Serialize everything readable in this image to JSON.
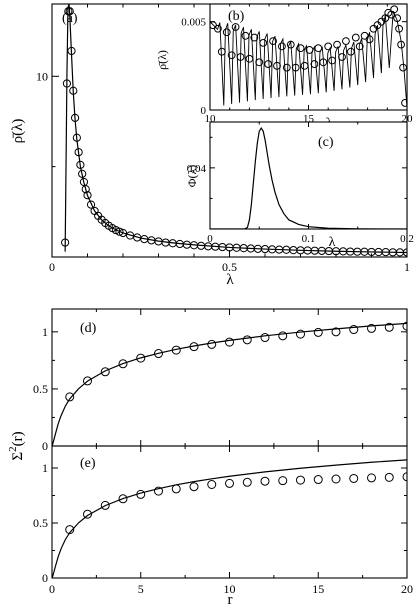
{
  "chart_data": [
    {
      "id": "a",
      "type": "scatter",
      "panel_label": "(a)",
      "xlabel": "λ",
      "ylabel": "ρ̄(λ)",
      "xlim": [
        0,
        1
      ],
      "ylim": [
        0,
        14
      ],
      "x_ticks": [
        0,
        0.5,
        1
      ],
      "x_tick_labels": [
        "0",
        "0.5",
        "1"
      ],
      "y_ticks": [
        10
      ],
      "y_tick_labels": [
        "10"
      ],
      "series": [
        {
          "style": "line",
          "x": [
            0.037,
            0.04,
            0.042,
            0.045,
            0.048,
            0.05,
            0.055,
            0.06,
            0.065,
            0.07,
            0.08,
            0.09,
            0.1,
            0.12,
            0.14,
            0.16,
            0.18,
            0.2,
            0.25,
            0.3,
            0.35,
            0.4,
            0.5,
            0.6,
            0.7,
            0.8,
            0.9,
            1.0
          ],
          "y": [
            0.3,
            6.0,
            10.0,
            13.8,
            14.0,
            13.4,
            11.2,
            9.1,
            7.6,
            6.5,
            5.0,
            4.1,
            3.4,
            2.55,
            2.05,
            1.72,
            1.5,
            1.33,
            1.05,
            0.88,
            0.76,
            0.67,
            0.53,
            0.44,
            0.37,
            0.32,
            0.28,
            0.25
          ]
        },
        {
          "style": "markers",
          "x": [
            0.037,
            0.042,
            0.046,
            0.05,
            0.055,
            0.06,
            0.065,
            0.07,
            0.075,
            0.08,
            0.085,
            0.09,
            0.095,
            0.1,
            0.11,
            0.12,
            0.13,
            0.14,
            0.15,
            0.16,
            0.17,
            0.18,
            0.19,
            0.2,
            0.22,
            0.24,
            0.26,
            0.28,
            0.3,
            0.32,
            0.34,
            0.36,
            0.38,
            0.4,
            0.42,
            0.44,
            0.46,
            0.48,
            0.5,
            0.52,
            0.54,
            0.56,
            0.58,
            0.6,
            0.62,
            0.64,
            0.66,
            0.68,
            0.7,
            0.72,
            0.74,
            0.76,
            0.78,
            0.8,
            0.82,
            0.84,
            0.86,
            0.88,
            0.9,
            0.92,
            0.94,
            0.96,
            0.98,
            1.0
          ],
          "y": [
            0.8,
            9.6,
            13.6,
            13.6,
            11.4,
            9.2,
            7.7,
            6.6,
            5.8,
            5.1,
            4.6,
            4.15,
            3.75,
            3.42,
            2.9,
            2.55,
            2.28,
            2.06,
            1.88,
            1.73,
            1.6,
            1.49,
            1.4,
            1.33,
            1.19,
            1.08,
            0.99,
            0.92,
            0.86,
            0.8,
            0.76,
            0.72,
            0.68,
            0.65,
            0.62,
            0.59,
            0.57,
            0.55,
            0.53,
            0.51,
            0.49,
            0.47,
            0.45,
            0.44,
            0.42,
            0.41,
            0.4,
            0.38,
            0.37,
            0.36,
            0.35,
            0.34,
            0.33,
            0.32,
            0.31,
            0.3,
            0.295,
            0.29,
            0.28,
            0.275,
            0.27,
            0.26,
            0.255,
            0.25
          ]
        }
      ]
    },
    {
      "id": "b",
      "type": "scatter",
      "panel_label": "(b)",
      "xlabel": "λ",
      "ylabel": "ρ̄(λ)",
      "xlim": [
        10,
        20
      ],
      "ylim": [
        0,
        0.006
      ],
      "x_ticks": [
        10,
        15,
        20
      ],
      "x_tick_labels": [
        "10",
        "15",
        "20"
      ],
      "y_ticks": [
        0,
        0.005
      ],
      "y_tick_labels": [
        "0",
        "0.005"
      ],
      "series": [
        {
          "style": "oscillating-line",
          "peaks_x": [
            10.5,
            10.9,
            11.3,
            11.7,
            12.1,
            12.5,
            12.9,
            13.3,
            13.7,
            14.1,
            14.5,
            14.9,
            15.3,
            15.7,
            16.1,
            16.5,
            16.9,
            17.3,
            17.7,
            18.1,
            18.5,
            18.9
          ],
          "troughs_x": [
            10.7,
            11.1,
            11.5,
            11.9,
            12.3,
            12.7,
            13.1,
            13.5,
            13.9,
            14.3,
            14.7,
            15.1,
            15.5,
            15.9,
            16.3,
            16.7,
            17.1,
            17.5,
            17.9,
            18.3,
            18.7,
            19.1
          ],
          "envelope_x": [
            10.0,
            11.0,
            12.0,
            13.0,
            14.0,
            15.0,
            16.0,
            17.0,
            17.8,
            18.5,
            19.0,
            19.3,
            19.6,
            19.8,
            20.0
          ],
          "envelope_y": [
            0.005,
            0.0049,
            0.0046,
            0.0043,
            0.0039,
            0.0036,
            0.0035,
            0.0037,
            0.0041,
            0.0048,
            0.0055,
            0.0056,
            0.0048,
            0.003,
            0.0001
          ]
        },
        {
          "style": "markers",
          "x": [
            10.15,
            10.4,
            10.6,
            10.85,
            11.1,
            11.3,
            11.55,
            11.8,
            12.0,
            12.25,
            12.5,
            12.7,
            12.95,
            13.2,
            13.4,
            13.65,
            13.9,
            14.1,
            14.35,
            14.6,
            14.8,
            15.05,
            15.3,
            15.5,
            15.75,
            16.0,
            16.2,
            16.45,
            16.7,
            16.9,
            17.15,
            17.4,
            17.6,
            17.85,
            18.1,
            18.3,
            18.5,
            18.7,
            18.9,
            19.05,
            19.2,
            19.35,
            19.5,
            19.6,
            19.7,
            19.8,
            19.9
          ],
          "y": [
            0.0048,
            0.0046,
            0.0033,
            0.0044,
            0.0031,
            0.0047,
            0.003,
            0.0042,
            0.0029,
            0.0041,
            0.0027,
            0.0038,
            0.0026,
            0.0039,
            0.0025,
            0.0036,
            0.0024,
            0.0037,
            0.0024,
            0.0035,
            0.0025,
            0.0034,
            0.0026,
            0.0035,
            0.0027,
            0.0036,
            0.0028,
            0.0037,
            0.003,
            0.0039,
            0.0033,
            0.0041,
            0.0036,
            0.0042,
            0.004,
            0.0046,
            0.0048,
            0.005,
            0.0052,
            0.0055,
            0.0054,
            0.0057,
            0.0052,
            0.0046,
            0.0037,
            0.0024,
            0.0004
          ]
        }
      ]
    },
    {
      "id": "c",
      "type": "line",
      "panel_label": "(c)",
      "xlabel": "λ",
      "ylabel": "Φ(λ)",
      "xlim": [
        0,
        0.2
      ],
      "ylim": [
        0,
        0.07
      ],
      "x_ticks": [
        0,
        0.1,
        0.2
      ],
      "x_tick_labels": [
        "0",
        "0.1",
        "0.2"
      ],
      "y_ticks": [
        0.04
      ],
      "y_tick_labels": [
        "0.04"
      ],
      "series": [
        {
          "x": [
            0,
            0.035,
            0.038,
            0.04,
            0.042,
            0.044,
            0.046,
            0.048,
            0.05,
            0.052,
            0.054,
            0.056,
            0.058,
            0.06,
            0.063,
            0.066,
            0.07,
            0.075,
            0.08,
            0.09,
            0.1,
            0.12,
            0.15,
            0.2
          ],
          "y": [
            0,
            0,
            0.001,
            0.006,
            0.016,
            0.03,
            0.044,
            0.056,
            0.064,
            0.066,
            0.064,
            0.058,
            0.05,
            0.042,
            0.032,
            0.024,
            0.016,
            0.01,
            0.006,
            0.003,
            0.0015,
            0.0005,
            0.0001,
            0
          ]
        }
      ]
    },
    {
      "id": "d",
      "type": "scatter",
      "panel_label": "(d)",
      "xlabel": "",
      "ylabel": "",
      "xlim": [
        0,
        20
      ],
      "ylim": [
        0,
        1.2
      ],
      "x_ticks": [
        0,
        5,
        10,
        15,
        20
      ],
      "y_ticks": [
        0,
        0.5,
        1
      ],
      "y_tick_labels": [
        "0",
        "0.5",
        "1"
      ],
      "series": [
        {
          "style": "line",
          "x": [
            0.001,
            0.02,
            0.05,
            0.1,
            0.2,
            0.35,
            0.5,
            0.75,
            1,
            1.5,
            2,
            3,
            4,
            5,
            6,
            7,
            8,
            9,
            10,
            12,
            14,
            16,
            18,
            20
          ],
          "y": [
            0.0003,
            0.0066,
            0.022,
            0.051,
            0.11,
            0.194,
            0.262,
            0.349,
            0.413,
            0.502,
            0.568,
            0.658,
            0.722,
            0.772,
            0.812,
            0.847,
            0.876,
            0.902,
            0.925,
            0.965,
            0.998,
            1.026,
            1.052,
            1.074
          ]
        },
        {
          "style": "markers",
          "x": [
            1,
            2,
            3,
            4,
            5,
            6,
            7,
            8,
            9,
            10,
            11,
            12,
            13,
            14,
            15,
            16,
            17,
            18,
            19,
            20
          ],
          "y": [
            0.43,
            0.57,
            0.65,
            0.72,
            0.77,
            0.81,
            0.84,
            0.87,
            0.89,
            0.91,
            0.93,
            0.95,
            0.965,
            0.98,
            0.995,
            1.0,
            1.02,
            1.03,
            1.04,
            1.05
          ]
        }
      ]
    },
    {
      "id": "e",
      "type": "scatter",
      "panel_label": "(e)",
      "xlabel": "r",
      "ylabel": "",
      "xlim": [
        0,
        20
      ],
      "ylim": [
        0,
        1.2
      ],
      "x_ticks": [
        0,
        5,
        10,
        15,
        20
      ],
      "x_tick_labels": [
        "0",
        "5",
        "10",
        "15",
        "20"
      ],
      "y_ticks": [
        0,
        0.5,
        1
      ],
      "y_tick_labels": [
        "0",
        "0.5",
        "1"
      ],
      "series": [
        {
          "style": "line",
          "x": [
            0.001,
            0.02,
            0.05,
            0.1,
            0.2,
            0.35,
            0.5,
            0.75,
            1,
            1.5,
            2,
            3,
            4,
            5,
            6,
            7,
            8,
            9,
            10,
            12,
            14,
            16,
            18,
            20
          ],
          "y": [
            0.0003,
            0.0066,
            0.022,
            0.051,
            0.11,
            0.194,
            0.262,
            0.349,
            0.413,
            0.502,
            0.568,
            0.658,
            0.722,
            0.772,
            0.812,
            0.847,
            0.876,
            0.902,
            0.925,
            0.965,
            0.998,
            1.026,
            1.052,
            1.074
          ]
        },
        {
          "style": "markers",
          "x": [
            1,
            2,
            3,
            4,
            5,
            6,
            7,
            8,
            9,
            10,
            11,
            12,
            13,
            14,
            15,
            16,
            17,
            18,
            19,
            20
          ],
          "y": [
            0.44,
            0.58,
            0.66,
            0.72,
            0.76,
            0.79,
            0.81,
            0.83,
            0.85,
            0.86,
            0.87,
            0.88,
            0.885,
            0.89,
            0.895,
            0.9,
            0.905,
            0.91,
            0.915,
            0.92
          ]
        }
      ]
    }
  ],
  "shared_ylabel_de": "Σ²(r)",
  "shared_ylabel_de_base": "Σ",
  "shared_ylabel_de_sup": "2",
  "shared_ylabel_de_arg": "(r)"
}
